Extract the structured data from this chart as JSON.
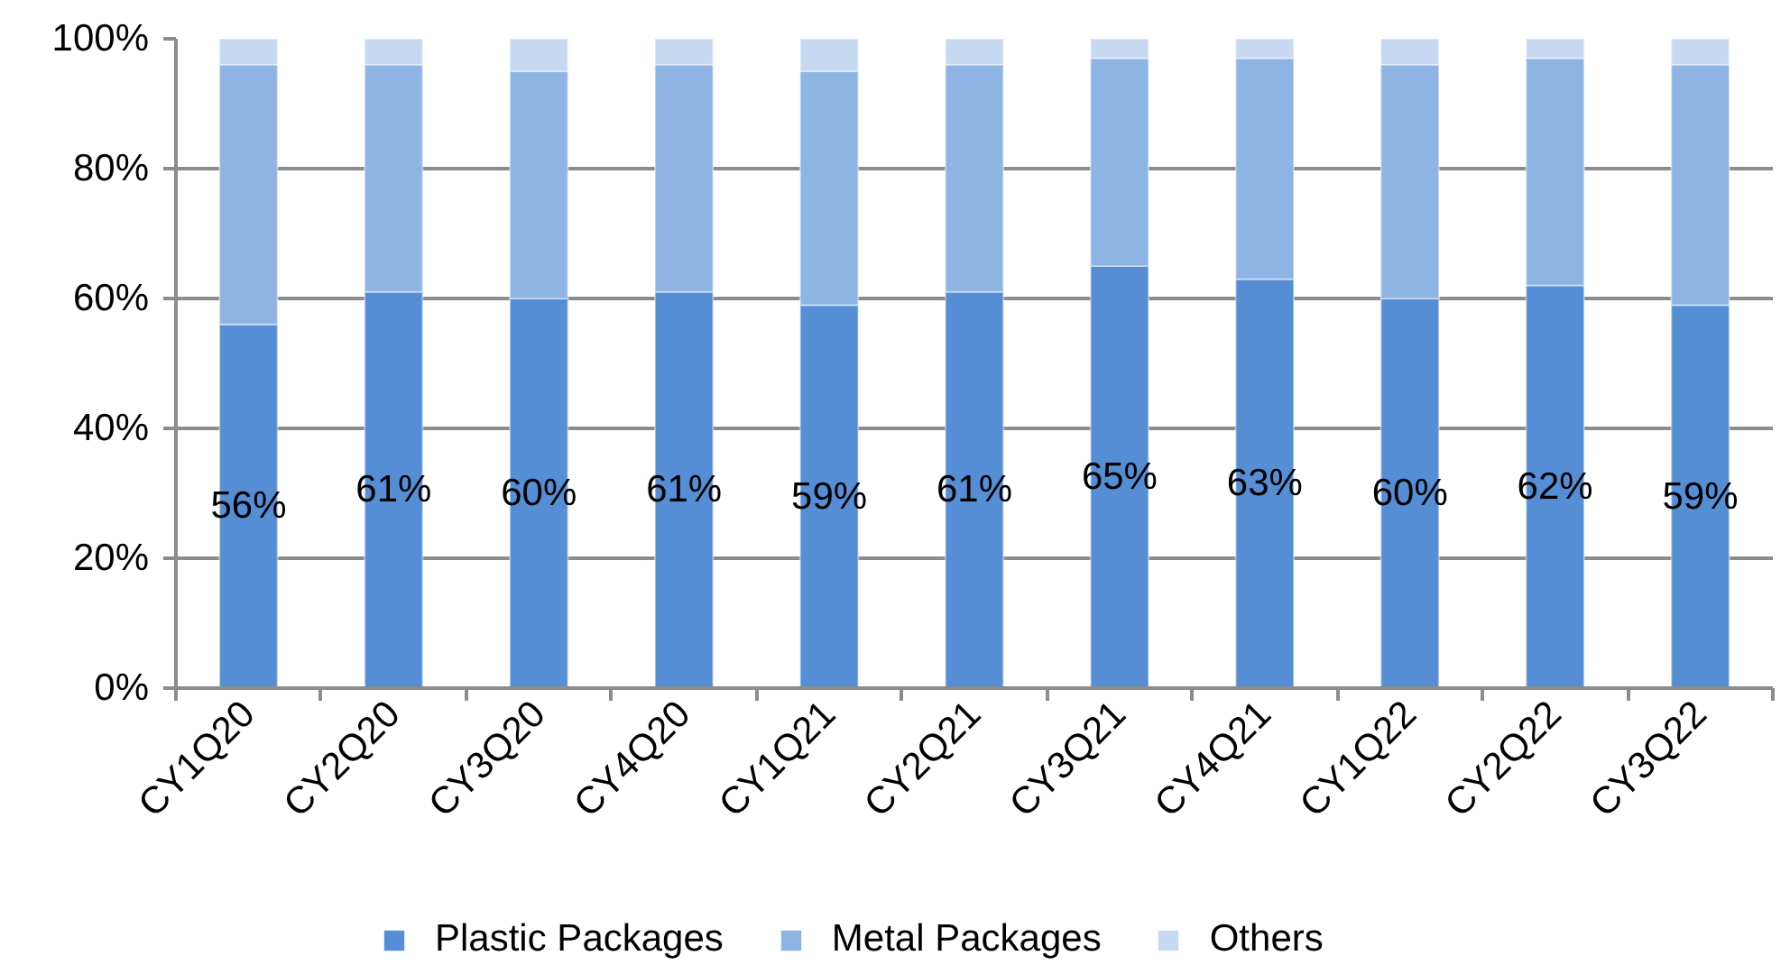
{
  "chart_data": {
    "type": "bar",
    "stacked": true,
    "categories": [
      "CY1Q20",
      "CY2Q20",
      "CY3Q20",
      "CY4Q20",
      "CY1Q21",
      "CY2Q21",
      "CY3Q21",
      "CY4Q21",
      "CY1Q22",
      "CY2Q22",
      "CY3Q22"
    ],
    "series": [
      {
        "name": "Plastic Packages",
        "color": "#558ed5",
        "values": [
          56,
          61,
          60,
          61,
          59,
          61,
          65,
          63,
          60,
          62,
          59
        ],
        "value_labels": [
          "56%",
          "61%",
          "60%",
          "61%",
          "59%",
          "61%",
          "65%",
          "63%",
          "60%",
          "62%",
          "59%"
        ]
      },
      {
        "name": "Metal Packages",
        "color": "#8eb4e3",
        "values": [
          40,
          35,
          35,
          35,
          36,
          35,
          32,
          34,
          36,
          35,
          37
        ]
      },
      {
        "name": "Others",
        "color": "#c6d9f1",
        "values": [
          4,
          4,
          5,
          4,
          5,
          4,
          3,
          3,
          4,
          3,
          4
        ]
      }
    ],
    "ylim": [
      0,
      100
    ],
    "yticks": [
      {
        "value": 0,
        "label": "0%"
      },
      {
        "value": 20,
        "label": "20%"
      },
      {
        "value": 40,
        "label": "40%"
      },
      {
        "value": 60,
        "label": "60%"
      },
      {
        "value": 80,
        "label": "80%"
      },
      {
        "value": 100,
        "label": "100%"
      }
    ],
    "grid": "y",
    "legend": "bottom"
  }
}
